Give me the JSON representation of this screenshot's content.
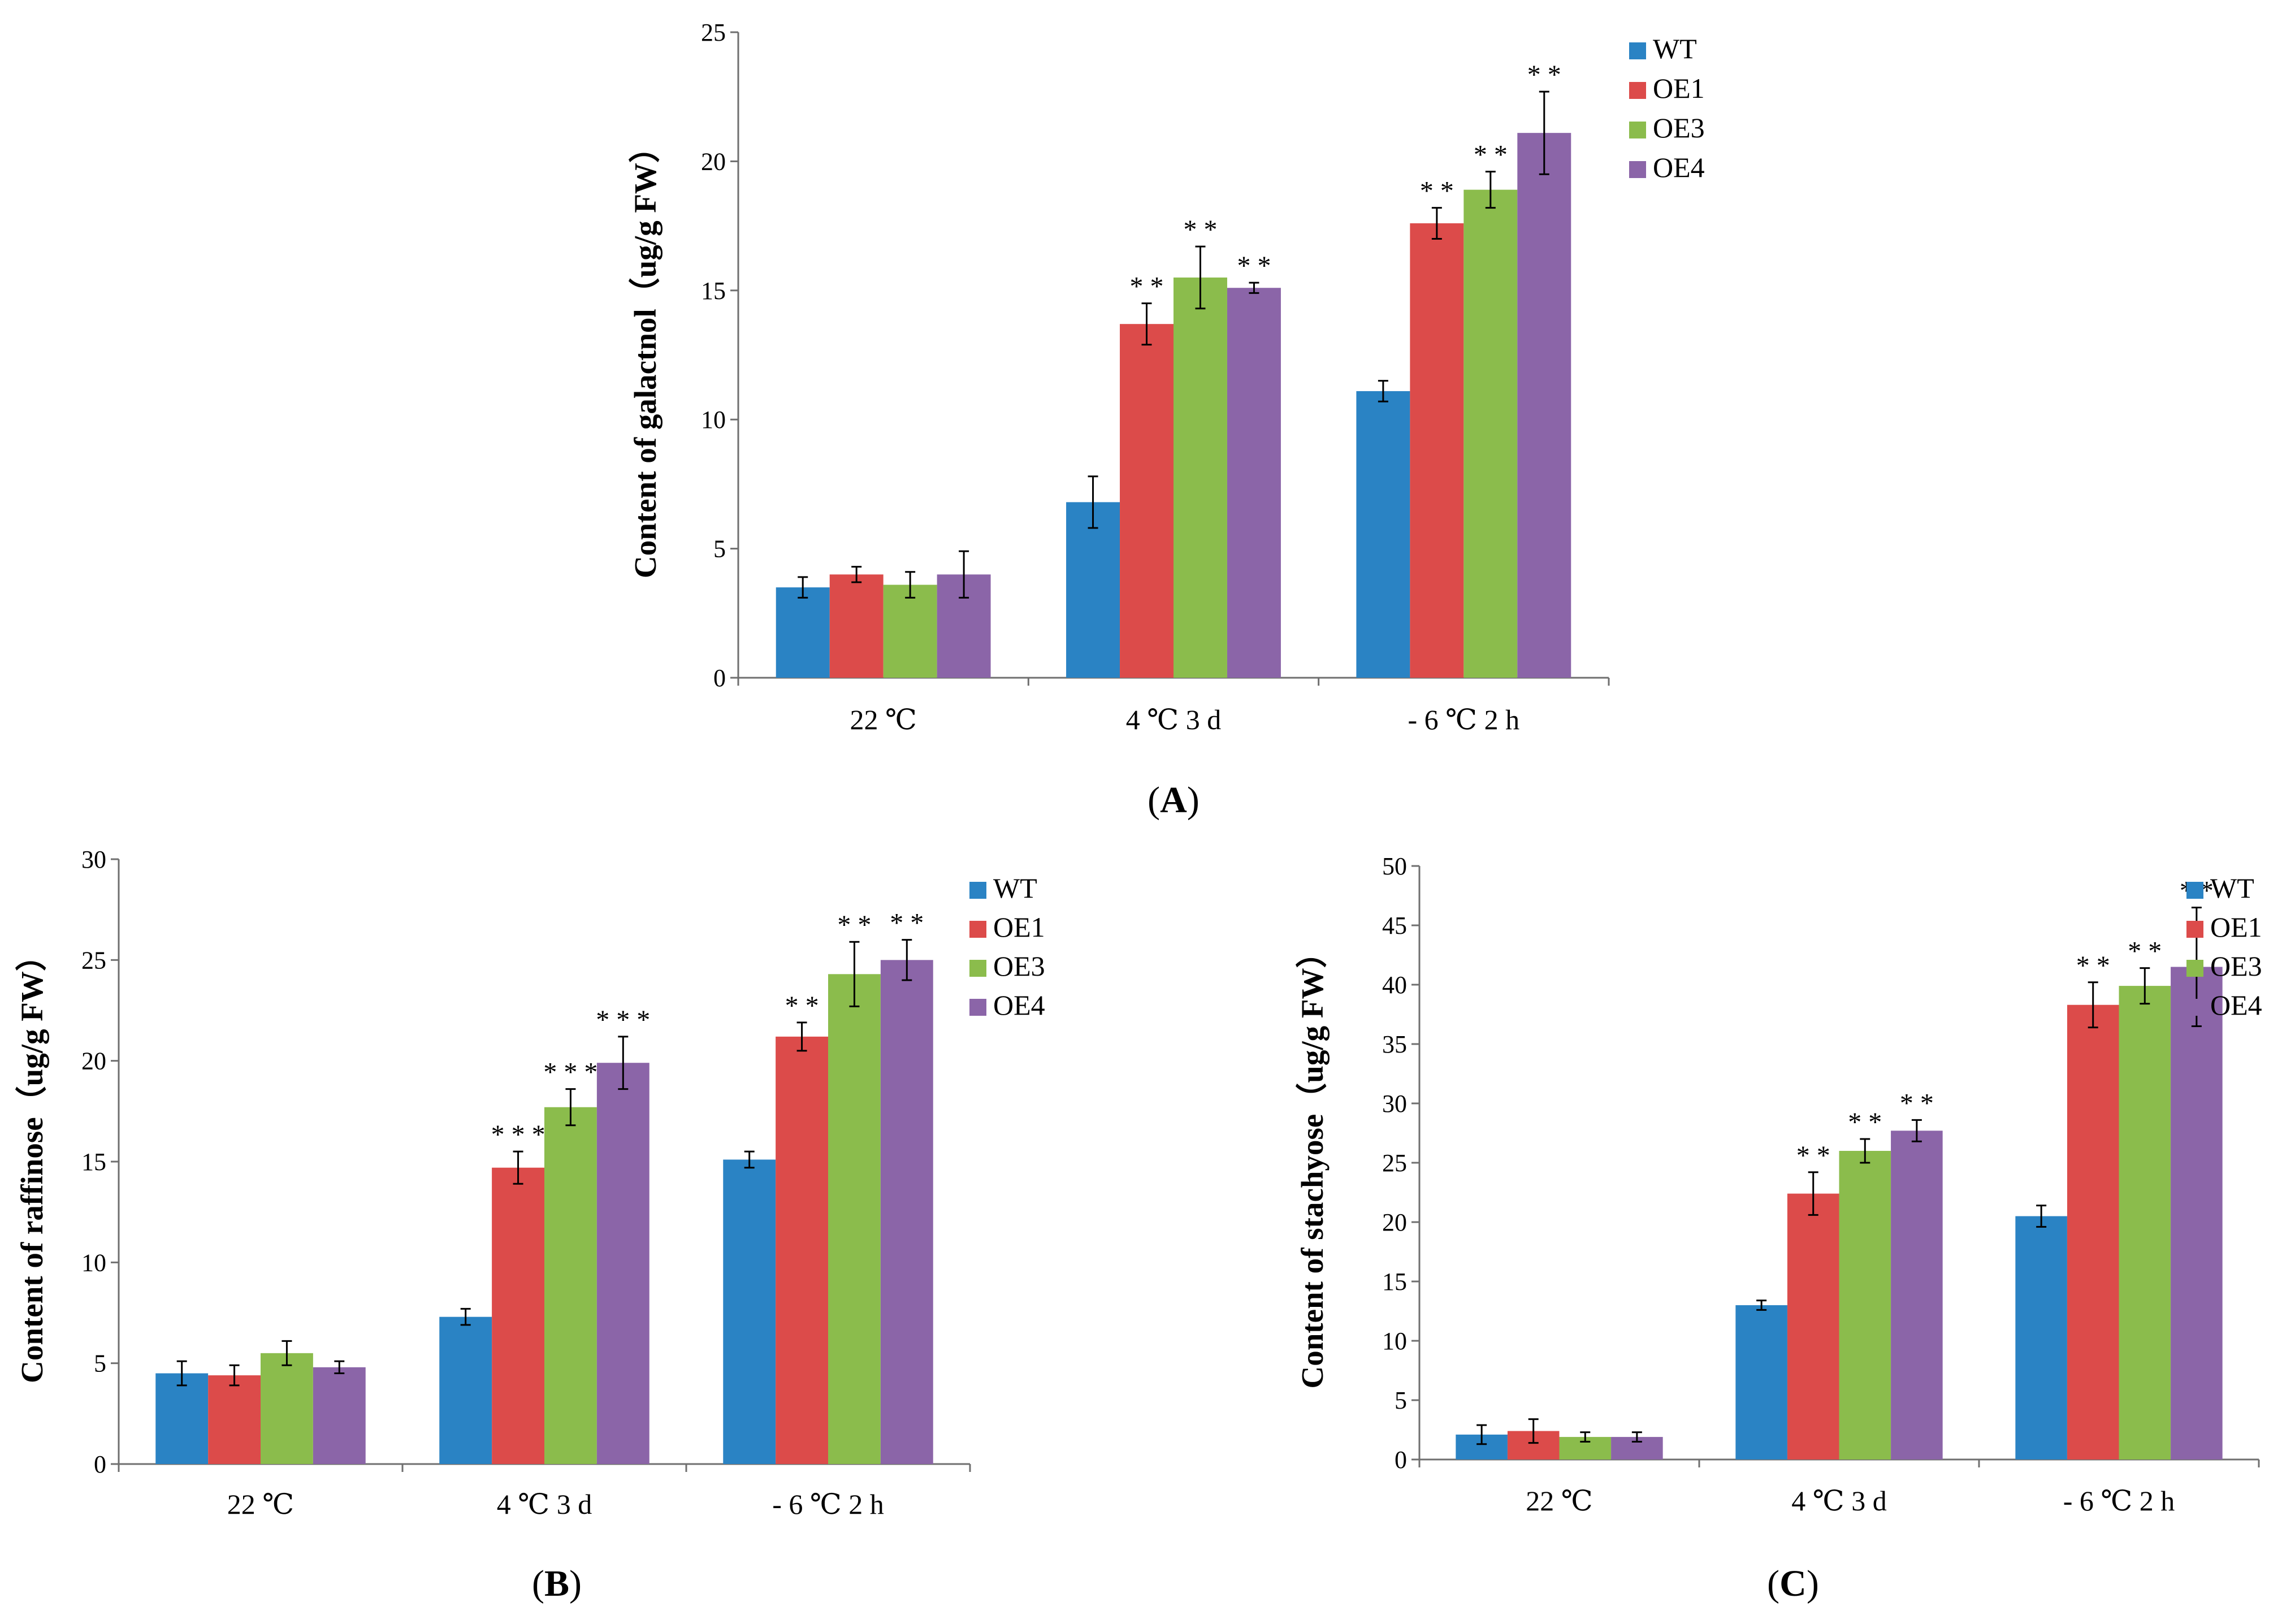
{
  "colors": {
    "WT": "#2a83c4",
    "OE1": "#dc4b4a",
    "OE3": "#8bbc4c",
    "OE4": "#8b65a8",
    "axis": "#6f6f6f",
    "error": "#000000"
  },
  "chart_data": [
    {
      "panel": "A",
      "panel_label": {
        "open": "(",
        "letter": "A",
        "close": ")"
      },
      "type": "bar",
      "ylabel": "Content of galactnol（ug/g FW）",
      "xlabel": "",
      "ylim": [
        0,
        25
      ],
      "yticks": [
        0,
        5,
        10,
        15,
        20,
        25
      ],
      "categories": [
        "22 ℃",
        "4 ℃ 3 d",
        "- 6 ℃ 2 h"
      ],
      "legend": [
        "WT",
        "OE1",
        "OE3",
        "OE4"
      ],
      "legend_position": "top-right",
      "series": [
        {
          "name": "WT",
          "values": [
            3.5,
            6.8,
            11.1
          ],
          "errors": [
            0.4,
            1.0,
            0.4
          ],
          "sig": [
            "",
            "",
            ""
          ]
        },
        {
          "name": "OE1",
          "values": [
            4.0,
            13.7,
            17.6
          ],
          "errors": [
            0.3,
            0.8,
            0.6
          ],
          "sig": [
            "",
            "**",
            "**"
          ]
        },
        {
          "name": "OE3",
          "values": [
            3.6,
            15.5,
            18.9
          ],
          "errors": [
            0.5,
            1.2,
            0.7
          ],
          "sig": [
            "",
            "**",
            "**"
          ]
        },
        {
          "name": "OE4",
          "values": [
            4.0,
            15.1,
            21.1
          ],
          "errors": [
            0.9,
            0.2,
            1.6
          ],
          "sig": [
            "",
            "**",
            "**"
          ]
        }
      ]
    },
    {
      "panel": "B",
      "panel_label": {
        "open": "(",
        "letter": "B",
        "close": ")"
      },
      "type": "bar",
      "ylabel": "Content of raffinose（ug/g FW）",
      "xlabel": "",
      "ylim": [
        0,
        30
      ],
      "yticks": [
        0,
        5,
        10,
        15,
        20,
        25,
        30
      ],
      "categories": [
        "22 ℃",
        "4 ℃ 3 d",
        "- 6 ℃ 2 h"
      ],
      "legend": [
        "WT",
        "OE1",
        "OE3",
        "OE4"
      ],
      "legend_position": "top-right",
      "series": [
        {
          "name": "WT",
          "values": [
            4.5,
            7.3,
            15.1
          ],
          "errors": [
            0.6,
            0.4,
            0.4
          ],
          "sig": [
            "",
            "",
            ""
          ]
        },
        {
          "name": "OE1",
          "values": [
            4.4,
            14.7,
            21.2
          ],
          "errors": [
            0.5,
            0.8,
            0.7
          ],
          "sig": [
            "",
            "***",
            "**"
          ]
        },
        {
          "name": "OE3",
          "values": [
            5.5,
            17.7,
            24.3
          ],
          "errors": [
            0.6,
            0.9,
            1.6
          ],
          "sig": [
            "",
            "***",
            "**"
          ]
        },
        {
          "name": "OE4",
          "values": [
            4.8,
            19.9,
            25.0
          ],
          "errors": [
            0.3,
            1.3,
            1.0
          ],
          "sig": [
            "",
            "***",
            "**"
          ]
        }
      ]
    },
    {
      "panel": "C",
      "panel_label": {
        "open": "(",
        "letter": "C",
        "close": ")"
      },
      "type": "bar",
      "ylabel": "Content of stachyose（ug/g FW）",
      "xlabel": "",
      "ylim": [
        0,
        50
      ],
      "yticks": [
        0,
        5,
        10,
        15,
        20,
        25,
        30,
        35,
        40,
        45,
        50
      ],
      "categories": [
        "22 ℃",
        "4 ℃ 3 d",
        "- 6 ℃ 2 h"
      ],
      "legend": [
        "WT",
        "OE1",
        "OE3",
        "OE4"
      ],
      "legend_position": "top-right",
      "series": [
        {
          "name": "WT",
          "values": [
            2.1,
            13.0,
            20.5
          ],
          "errors": [
            0.8,
            0.4,
            0.9
          ],
          "sig": [
            "",
            "",
            ""
          ]
        },
        {
          "name": "OE1",
          "values": [
            2.4,
            22.4,
            38.3
          ],
          "errors": [
            1.0,
            1.8,
            1.9
          ],
          "sig": [
            "",
            "**",
            "**"
          ]
        },
        {
          "name": "OE3",
          "values": [
            1.9,
            26.0,
            39.9
          ],
          "errors": [
            0.4,
            1.0,
            1.5
          ],
          "sig": [
            "",
            "**",
            "**"
          ]
        },
        {
          "name": "OE4",
          "values": [
            1.9,
            27.7,
            41.5
          ],
          "errors": [
            0.4,
            0.9,
            5.0
          ],
          "sig": [
            "",
            "**",
            "**"
          ]
        }
      ]
    }
  ]
}
